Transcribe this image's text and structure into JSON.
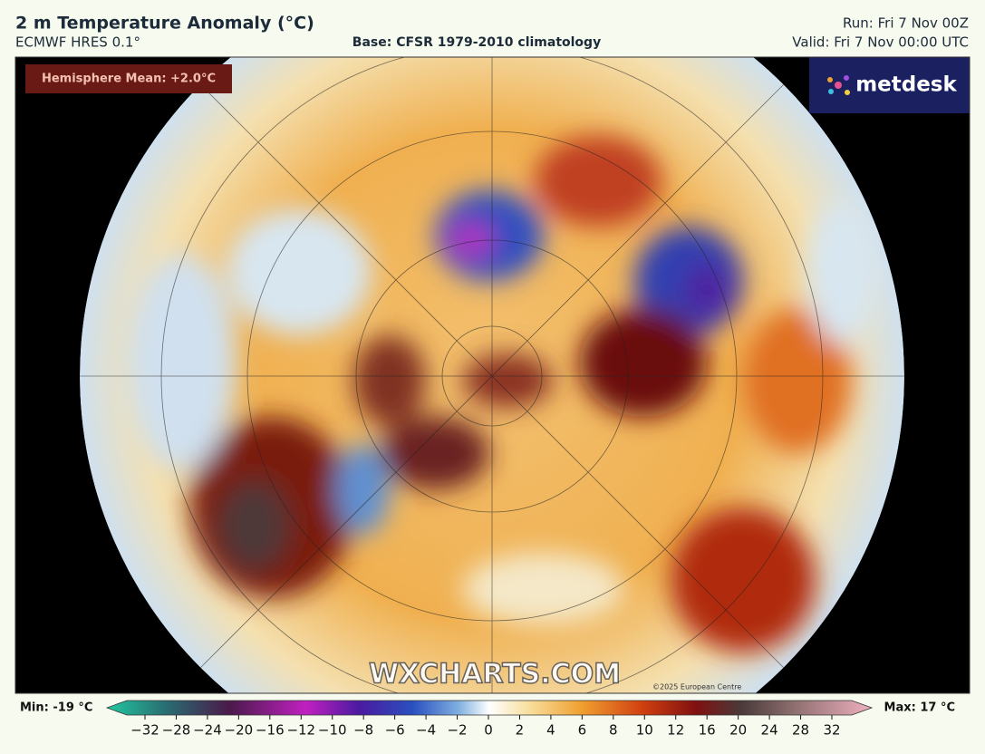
{
  "header": {
    "title": "2 m Temperature Anomaly (°C)",
    "model": "ECMWF HRES 0.1°",
    "base": "Base: CFSR 1979-2010 climatology",
    "run": "Run: Fri 7 Nov 00Z",
    "valid": "Valid: Fri 7 Nov 00:00 UTC"
  },
  "map": {
    "hemisphere_mean": "Hemisphere Mean: +2.0°C",
    "logo": "metdesk",
    "watermark": "WXCHARTS.COM",
    "copyright": "©2025 European Centre"
  },
  "colorbar": {
    "min": "Min: -19 °C",
    "max": "Max: 17 °C",
    "ticks": [
      "−32",
      "−28",
      "−24",
      "−20",
      "−16",
      "−12",
      "−10",
      "−8",
      "−6",
      "−4",
      "−2",
      "0",
      "2",
      "4",
      "6",
      "8",
      "10",
      "12",
      "16",
      "20",
      "24",
      "28",
      "32"
    ]
  }
}
